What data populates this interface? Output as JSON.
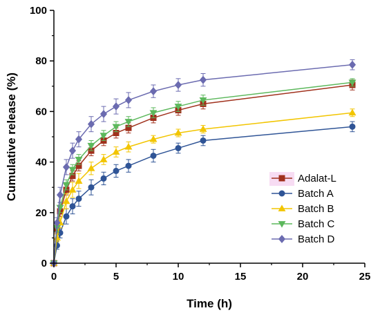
{
  "chart_data": {
    "type": "line",
    "title": "",
    "xlabel": "Time (h)",
    "ylabel": "Cumulative release (%)",
    "xlim": [
      0,
      25
    ],
    "ylim": [
      0,
      100
    ],
    "xticks": [
      0,
      5,
      10,
      15,
      20,
      25
    ],
    "yticks": [
      0,
      20,
      40,
      60,
      80,
      100
    ],
    "grid": false,
    "legend_position": "bottom-right",
    "x": [
      0,
      0.25,
      0.5,
      1,
      1.5,
      2,
      3,
      4,
      5,
      6,
      8,
      10,
      12,
      24
    ],
    "series": [
      {
        "name": "Adalat-L",
        "color": "#a0301c",
        "marker": "square",
        "values": [
          0,
          13.5,
          20.5,
          29,
          34.5,
          38.5,
          44.5,
          48.5,
          51.5,
          53.5,
          57.5,
          60.5,
          63,
          70.5
        ],
        "errors": [
          0,
          1.5,
          2,
          2,
          2,
          2,
          2,
          2,
          2,
          2,
          2,
          2,
          2,
          2
        ]
      },
      {
        "name": "Batch A",
        "color": "#2f5496",
        "marker": "circle",
        "values": [
          0,
          7,
          12,
          18.5,
          22.5,
          25.5,
          30,
          33.5,
          36.5,
          38.5,
          42.5,
          45.5,
          48.5,
          54
        ],
        "errors": [
          0,
          1.5,
          2,
          3,
          3,
          3,
          3,
          2.5,
          2.5,
          2.5,
          2.5,
          2,
          2,
          2
        ]
      },
      {
        "name": "Batch B",
        "color": "#f2c500",
        "marker": "triangle-up",
        "values": [
          0,
          10,
          16,
          24.5,
          29,
          32.5,
          37.5,
          41,
          44,
          46,
          49,
          51.5,
          53,
          59.5
        ],
        "errors": [
          0,
          1.5,
          2,
          3,
          3,
          3,
          2.5,
          2,
          2,
          2,
          1.5,
          1.5,
          1.5,
          1.5
        ]
      },
      {
        "name": "Batch C",
        "color": "#5cb85c",
        "marker": "triangle-down",
        "values": [
          0,
          14,
          22,
          31,
          37,
          41,
          46.5,
          50.5,
          54,
          56,
          59.5,
          62,
          64.5,
          71.5
        ],
        "errors": [
          0,
          1.5,
          2,
          2,
          2,
          2,
          2,
          2,
          2,
          2,
          2,
          2,
          2,
          1.5
        ]
      },
      {
        "name": "Batch D",
        "color": "#6b6bb0",
        "marker": "diamond",
        "values": [
          0,
          16,
          27,
          38,
          44.5,
          49,
          55,
          59,
          62,
          64.5,
          68,
          70.5,
          72.5,
          78.5
        ],
        "errors": [
          0,
          2,
          3,
          3,
          3,
          3,
          3,
          3,
          3,
          3,
          2.5,
          2.5,
          2.5,
          2
        ]
      }
    ]
  }
}
